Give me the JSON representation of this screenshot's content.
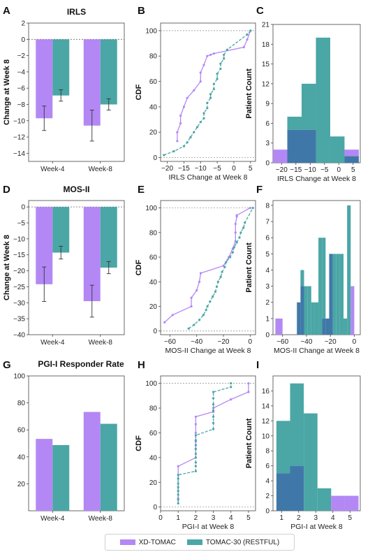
{
  "colors": {
    "xd": "#b388f5",
    "tomac": "#4ba6a6",
    "overlap": "#3f78a8",
    "axis": "#222222"
  },
  "legend": {
    "items": [
      {
        "label": "XD-TOMAC",
        "color": "#b388f5"
      },
      {
        "label": "TOMAC-30 (RESTFUL)",
        "color": "#4ba6a6"
      }
    ]
  },
  "chart_data": [
    {
      "id": "A",
      "letter": "A",
      "type": "bar",
      "title": "IRLS",
      "xlabel": "",
      "ylabel": "Change at Week 8",
      "categories": [
        "Week-4",
        "Week-8"
      ],
      "ylim": [
        -15,
        2
      ],
      "yticks": [
        2,
        0,
        -2,
        -4,
        -6,
        -8,
        -10,
        -12,
        -14
      ],
      "series": [
        {
          "values": [
            -9.7,
            -10.6
          ],
          "errors": [
            1.5,
            1.9
          ],
          "color": "#b388f5"
        },
        {
          "values": [
            -6.9,
            -8.0
          ],
          "errors": [
            0.7,
            0.7
          ],
          "color": "#4ba6a6"
        }
      ]
    },
    {
      "id": "B",
      "letter": "B",
      "type": "line",
      "subtype": "cdf",
      "xlabel": "IRLS Change at Week 8",
      "ylabel": "CDF",
      "xlim": [
        -22,
        6.5
      ],
      "xticks": [
        -20,
        -15,
        -10,
        -5,
        0,
        5
      ],
      "ylim": [
        -3,
        106
      ],
      "yticks": [
        0,
        20,
        40,
        60,
        80,
        100
      ],
      "series": [
        {
          "color": "#b388f5",
          "dashed": false,
          "x": [
            -17,
            -17,
            -16,
            -16,
            -15,
            -14,
            -12,
            -10,
            -10,
            -9,
            -8,
            -7,
            -6,
            3,
            4,
            5
          ],
          "y": [
            13,
            20,
            27,
            33,
            40,
            47,
            53,
            60,
            67,
            73,
            80,
            81,
            82,
            87,
            93,
            100
          ]
        },
        {
          "color": "#4ba6a6",
          "dashed": true,
          "x": [
            -21,
            -18,
            -15,
            -14,
            -13,
            -12,
            -11,
            -10,
            -9,
            -9,
            -8,
            -8,
            -7,
            -7,
            -6,
            -6,
            -5,
            -5,
            -4,
            -4,
            -3,
            -3,
            -2,
            4,
            5
          ],
          "y": [
            2,
            5,
            9,
            12,
            16,
            20,
            24,
            28,
            31,
            35,
            39,
            43,
            47,
            50,
            54,
            58,
            62,
            66,
            70,
            74,
            78,
            81,
            85,
            97,
            100
          ]
        }
      ]
    },
    {
      "id": "C",
      "letter": "C",
      "type": "histogram",
      "xlabel": "IRLS Change at Week 8",
      "ylabel": "Patient Count",
      "xlim": [
        -23,
        7.5
      ],
      "xticks": [
        -20,
        -15,
        -10,
        -5,
        0,
        5
      ],
      "ylim": [
        0,
        21
      ],
      "yticks": [
        0,
        3,
        6,
        9,
        12,
        15,
        18,
        21
      ],
      "bins": [
        -23,
        -18,
        -13,
        -8,
        -3,
        2,
        7
      ],
      "series": [
        {
          "name": "",
          "color": "#b388f5",
          "values": [
            2,
            5,
            5,
            0,
            0,
            2
          ]
        },
        {
          "name": "",
          "color": "#4ba6a6",
          "values": [
            0,
            7,
            12,
            19,
            4,
            1
          ]
        }
      ]
    },
    {
      "id": "D",
      "letter": "D",
      "type": "bar",
      "title": "MOS-II",
      "xlabel": "",
      "ylabel": "Change at Week 8",
      "categories": [
        "Week-4",
        "Week-8"
      ],
      "ylim": [
        -40,
        2
      ],
      "yticks": [
        0,
        -5,
        -10,
        -15,
        -20,
        -25,
        -30,
        -35,
        -40
      ],
      "series": [
        {
          "values": [
            -24.2,
            -29.5
          ],
          "errors": [
            5.4,
            5.0
          ],
          "color": "#b388f5"
        },
        {
          "values": [
            -14.3,
            -19.0
          ],
          "errors": [
            2.0,
            1.9
          ],
          "color": "#4ba6a6"
        }
      ]
    },
    {
      "id": "E",
      "letter": "E",
      "type": "line",
      "subtype": "cdf",
      "xlabel": "MOS-II Change at Week 8",
      "ylabel": "CDF",
      "xlim": [
        -67,
        4
      ],
      "xticks": [
        -60,
        -40,
        -20,
        0
      ],
      "ylim": [
        -3,
        106
      ],
      "yticks": [
        0,
        20,
        40,
        60,
        80,
        100
      ],
      "series": [
        {
          "color": "#b388f5",
          "dashed": false,
          "x": [
            -64,
            -58,
            -44,
            -44,
            -40,
            -38,
            -37,
            -20,
            -16,
            -13,
            -11,
            -11,
            -11,
            -10,
            -10,
            0
          ],
          "y": [
            7,
            13,
            20,
            27,
            33,
            40,
            47,
            53,
            60,
            67,
            73,
            80,
            87,
            93,
            94,
            100
          ]
        },
        {
          "color": "#4ba6a6",
          "dashed": true,
          "x": [
            -46,
            -42,
            -38,
            -35,
            -33,
            -32,
            -30,
            -28,
            -26,
            -25,
            -24,
            -22,
            -21,
            -19,
            -18,
            -15,
            -13,
            -12,
            -10,
            -8,
            -7,
            -5,
            -4,
            2
          ],
          "y": [
            2,
            5,
            9,
            13,
            17,
            20,
            24,
            28,
            32,
            36,
            40,
            44,
            48,
            52,
            56,
            60,
            64,
            68,
            72,
            76,
            80,
            84,
            88,
            100
          ]
        }
      ]
    },
    {
      "id": "F",
      "letter": "F",
      "type": "histogram",
      "xlabel": "MOS-II Change at Week 8",
      "ylabel": "Patient Count",
      "xlim": [
        -68,
        5
      ],
      "xticks": [
        -60,
        -40,
        -20,
        0
      ],
      "ylim": [
        0,
        8.3
      ],
      "yticks": [
        0,
        1,
        2,
        3,
        4,
        5,
        6,
        7,
        8
      ],
      "bins": [
        -66,
        -60,
        -54,
        -48,
        -45,
        -42,
        -39,
        -36,
        -33,
        -30,
        -27,
        -24,
        -21,
        -18,
        -15,
        -12,
        -9,
        -6,
        -3,
        0
      ],
      "series": [
        {
          "name": "",
          "color": "#b388f5",
          "values": [
            1,
            0,
            0,
            2,
            3,
            0,
            0,
            0,
            0,
            0,
            1,
            1,
            5,
            0,
            0,
            0,
            0,
            0,
            3
          ]
        },
        {
          "name": "",
          "color": "#4ba6a6",
          "values": [
            0,
            0,
            0,
            2,
            4,
            3,
            3,
            2,
            2,
            6,
            6,
            1,
            5,
            5,
            5,
            5,
            1,
            8,
            0
          ]
        }
      ]
    },
    {
      "id": "G",
      "letter": "G",
      "type": "bar",
      "title": "PGI-I Responder Rate",
      "xlabel": "",
      "ylabel": "",
      "categories": [
        "Week-4",
        "Week-8"
      ],
      "ylim": [
        0,
        100
      ],
      "yticks": [
        20,
        40,
        60,
        80,
        100
      ],
      "series": [
        {
          "values": [
            53.3,
            73.3
          ],
          "color": "#b388f5"
        },
        {
          "values": [
            48.7,
            64.5
          ],
          "color": "#4ba6a6"
        }
      ]
    },
    {
      "id": "H",
      "letter": "H",
      "type": "line",
      "subtype": "cdf",
      "xlabel": "PGI-I at Week 8",
      "ylabel": "CDF",
      "xlim": [
        0,
        5.4
      ],
      "xticks": [
        0,
        1,
        2,
        3,
        4,
        5
      ],
      "ylim": [
        -3,
        106
      ],
      "yticks": [
        0,
        20,
        40,
        60,
        80,
        100
      ],
      "series": [
        {
          "color": "#b388f5",
          "dashed": false,
          "x": [
            1,
            1,
            1,
            2,
            2,
            2,
            2,
            2,
            2,
            3,
            3,
            4,
            5,
            5
          ],
          "y": [
            7,
            13,
            33,
            40,
            47,
            53,
            60,
            67,
            73,
            77,
            80,
            87,
            93,
            100
          ]
        },
        {
          "color": "#4ba6a6",
          "dashed": true,
          "x": [
            1,
            1,
            1,
            1,
            1,
            1,
            1,
            1,
            2,
            2,
            2,
            2,
            2,
            2,
            2,
            2,
            2,
            3,
            3,
            3,
            3,
            3,
            3,
            3,
            4,
            4
          ],
          "y": [
            3,
            6,
            10,
            13,
            16,
            19,
            23,
            26,
            29,
            33,
            36,
            40,
            43,
            47,
            50,
            54,
            58,
            63,
            68,
            73,
            78,
            83,
            88,
            93,
            97,
            100
          ]
        }
      ]
    },
    {
      "id": "I",
      "letter": "I",
      "type": "histogram",
      "xlabel": "PGI-I at Week 8",
      "ylabel": "Patient Count",
      "xlim": [
        0.5,
        5.6
      ],
      "xticks": [
        1,
        2,
        3,
        4,
        5
      ],
      "ylim": [
        0,
        18
      ],
      "yticks": [
        0,
        2,
        4,
        6,
        8,
        10,
        12,
        14,
        16
      ],
      "bins": [
        0.7,
        1.5,
        2.3,
        3.1,
        3.9,
        4.7,
        5.5
      ],
      "series": [
        {
          "name": "",
          "color": "#b388f5",
          "values": [
            5,
            6,
            0,
            0,
            2,
            2
          ]
        },
        {
          "name": "",
          "color": "#4ba6a6",
          "values": [
            12,
            17,
            13,
            3,
            0,
            0
          ]
        }
      ]
    }
  ]
}
